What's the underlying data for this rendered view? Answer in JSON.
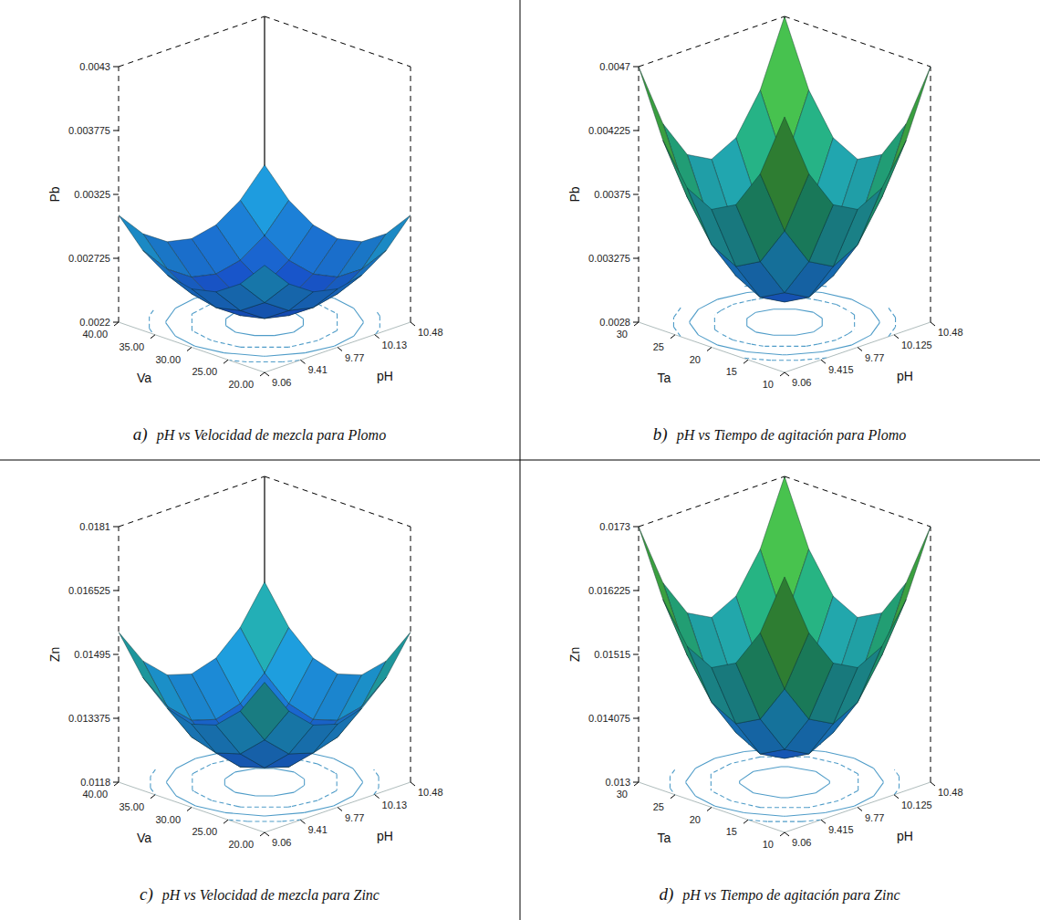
{
  "chart_data": [
    {
      "type": "surface3d",
      "panel_label": "a)",
      "title": "pH vs Velocidad de mezcla para Plomo",
      "x_label": "pH",
      "y_label": "Va",
      "z_label": "Pb",
      "x": [
        9.06,
        9.297,
        9.533,
        9.77,
        10.007,
        10.243,
        10.48
      ],
      "y": [
        20,
        23.333,
        26.667,
        30,
        33.333,
        36.667,
        40
      ],
      "z": [
        [
          0.00308,
          0.002858,
          0.002724,
          0.00268,
          0.002724,
          0.002858,
          0.00308
        ],
        [
          0.002858,
          0.002636,
          0.002502,
          0.002458,
          0.002502,
          0.002636,
          0.002858
        ],
        [
          0.002724,
          0.002502,
          0.002368,
          0.002324,
          0.002368,
          0.002502,
          0.002724
        ],
        [
          0.00268,
          0.002458,
          0.002324,
          0.00228,
          0.002324,
          0.002458,
          0.00268
        ],
        [
          0.002724,
          0.002502,
          0.002368,
          0.002324,
          0.002368,
          0.002502,
          0.002724
        ],
        [
          0.002858,
          0.002636,
          0.002502,
          0.002458,
          0.002502,
          0.002636,
          0.002858
        ],
        [
          0.00308,
          0.002858,
          0.002724,
          0.00268,
          0.002724,
          0.002858,
          0.00308
        ]
      ],
      "xlim": [
        9.06,
        10.48
      ],
      "xticks": [
        9.06,
        9.41,
        9.77,
        10.13,
        10.48
      ],
      "ylim": [
        20,
        40
      ],
      "yticks": [
        {
          "value": 20,
          "label": "20.00"
        },
        {
          "value": 25,
          "label": "25.00"
        },
        {
          "value": 30,
          "label": "30.00"
        },
        {
          "value": 35,
          "label": "35.00"
        },
        {
          "value": 40,
          "label": "40.00"
        }
      ],
      "zlim": [
        0.0022,
        0.0043
      ],
      "zticks": [
        0.0022,
        0.002725,
        0.00325,
        0.003775,
        0.0043
      ],
      "contour_levels": [
        0.00235,
        0.0025,
        0.00265,
        0.0028
      ]
    },
    {
      "type": "surface3d",
      "panel_label": "b)",
      "title": "pH vs Tiempo de agitación para Plomo",
      "x_label": "pH",
      "y_label": "Ta",
      "z_label": "Pb",
      "x": [
        9.06,
        9.297,
        9.533,
        9.77,
        10.007,
        10.243,
        10.48
      ],
      "y": [
        10,
        13.333,
        16.667,
        20,
        23.333,
        26.667,
        30
      ],
      "z": [
        [
          0.0047,
          0.004214,
          0.003922,
          0.003825,
          0.003922,
          0.004214,
          0.0047
        ],
        [
          0.004214,
          0.003728,
          0.003437,
          0.003339,
          0.003437,
          0.003728,
          0.004214
        ],
        [
          0.003922,
          0.003437,
          0.003144,
          0.003047,
          0.003144,
          0.003437,
          0.003922
        ],
        [
          0.003825,
          0.003339,
          0.003047,
          0.00295,
          0.003047,
          0.003339,
          0.003825
        ],
        [
          0.003922,
          0.003437,
          0.003144,
          0.003047,
          0.003144,
          0.003437,
          0.003922
        ],
        [
          0.004214,
          0.003728,
          0.003437,
          0.003339,
          0.003437,
          0.003728,
          0.004214
        ],
        [
          0.0047,
          0.004214,
          0.003922,
          0.003825,
          0.003922,
          0.004214,
          0.0047
        ]
      ],
      "xlim": [
        9.06,
        10.48
      ],
      "xticks": [
        9.06,
        9.415,
        9.77,
        10.125,
        10.48
      ],
      "ylim": [
        10,
        30
      ],
      "yticks": [
        10,
        15,
        20,
        25,
        30
      ],
      "zlim": [
        0.0028,
        0.0047
      ],
      "zticks": [
        0.0028,
        0.003275,
        0.00375,
        0.004225,
        0.0047
      ],
      "contour_levels": [
        0.0031,
        0.0034,
        0.0037,
        0.004
      ]
    },
    {
      "type": "surface3d",
      "panel_label": "c)",
      "title": "pH vs Velocidad de mezcla para Zinc",
      "x_label": "pH",
      "y_label": "Va",
      "z_label": "Zn",
      "x": [
        9.06,
        9.297,
        9.533,
        9.77,
        10.007,
        10.243,
        10.48
      ],
      "y": [
        20,
        23.333,
        26.667,
        30,
        33.333,
        36.667,
        40
      ],
      "z": [
        [
          0.0155,
          0.014583,
          0.014033,
          0.01385,
          0.014033,
          0.014583,
          0.0155
        ],
        [
          0.014583,
          0.013667,
          0.013117,
          0.012933,
          0.013117,
          0.013667,
          0.014583
        ],
        [
          0.014033,
          0.013117,
          0.012567,
          0.012383,
          0.012567,
          0.013117,
          0.014033
        ],
        [
          0.01385,
          0.012933,
          0.012383,
          0.0122,
          0.012383,
          0.012933,
          0.01385
        ],
        [
          0.014033,
          0.013117,
          0.012567,
          0.012383,
          0.012567,
          0.013117,
          0.014033
        ],
        [
          0.014583,
          0.013667,
          0.013117,
          0.012933,
          0.013117,
          0.013667,
          0.014583
        ],
        [
          0.0155,
          0.014583,
          0.014033,
          0.01385,
          0.014033,
          0.014583,
          0.0155
        ]
      ],
      "xlim": [
        9.06,
        10.48
      ],
      "xticks": [
        9.06,
        9.41,
        9.77,
        10.13,
        10.48
      ],
      "ylim": [
        20,
        40
      ],
      "yticks": [
        {
          "value": 20,
          "label": "20.00"
        },
        {
          "value": 25,
          "label": "25.00"
        },
        {
          "value": 30,
          "label": "30.00"
        },
        {
          "value": 35,
          "label": "35.00"
        },
        {
          "value": 40,
          "label": "40.00"
        }
      ],
      "zlim": [
        0.0118,
        0.0181
      ],
      "zticks": [
        0.0118,
        0.013375,
        0.01495,
        0.016525,
        0.0181
      ],
      "contour_levels": [
        0.0125,
        0.0131,
        0.0137,
        0.0143
      ]
    },
    {
      "type": "surface3d",
      "panel_label": "d)",
      "title": "pH vs Tiempo de agitación para Zinc",
      "x_label": "pH",
      "y_label": "Ta",
      "z_label": "Zn",
      "x": [
        9.06,
        9.297,
        9.533,
        9.77,
        10.007,
        10.243,
        10.48
      ],
      "y": [
        10,
        13.333,
        16.667,
        20,
        23.333,
        26.667,
        30
      ],
      "z": [
        [
          0.0173,
          0.016216,
          0.015567,
          0.01535,
          0.015567,
          0.016216,
          0.0173
        ],
        [
          0.016216,
          0.015133,
          0.014484,
          0.014266,
          0.014484,
          0.015133,
          0.016216
        ],
        [
          0.015567,
          0.014484,
          0.013833,
          0.013616,
          0.013833,
          0.014484,
          0.015567
        ],
        [
          0.01535,
          0.014266,
          0.013616,
          0.0134,
          0.013616,
          0.014266,
          0.01535
        ],
        [
          0.015567,
          0.014484,
          0.013833,
          0.013616,
          0.013833,
          0.014484,
          0.015567
        ],
        [
          0.016216,
          0.015133,
          0.014484,
          0.014266,
          0.014484,
          0.015133,
          0.016216
        ],
        [
          0.0173,
          0.016216,
          0.015567,
          0.01535,
          0.015567,
          0.016216,
          0.0173
        ]
      ],
      "xlim": [
        9.06,
        10.48
      ],
      "xticks": [
        9.06,
        9.415,
        9.77,
        10.125,
        10.48
      ],
      "ylim": [
        10,
        30
      ],
      "yticks": [
        10,
        15,
        20,
        25,
        30
      ],
      "zlim": [
        0.013,
        0.0173
      ],
      "zticks": [
        0.013,
        0.014075,
        0.01515,
        0.016225,
        0.0173
      ],
      "contour_levels": [
        0.0138,
        0.0145,
        0.0152,
        0.0159
      ]
    }
  ]
}
